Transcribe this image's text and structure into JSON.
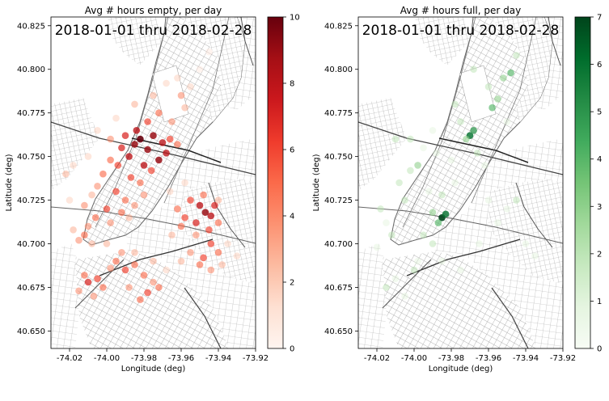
{
  "chart_data": [
    {
      "type": "scatter",
      "title": "Avg # hours empty, per day",
      "overlay": "2018-01-01 thru 2018-02-28",
      "xlabel": "Longitude (deg)",
      "ylabel": "Latitude (deg)",
      "xlim": [
        -74.03,
        -73.92
      ],
      "ylim": [
        40.64,
        40.83
      ],
      "xticks": [
        "-74.02",
        "-74.00",
        "-73.98",
        "-73.96",
        "-73.94",
        "-73.92"
      ],
      "yticks": [
        "40.650",
        "40.675",
        "40.700",
        "40.725",
        "40.750",
        "40.775",
        "40.800",
        "40.825"
      ],
      "colorbar": {
        "cmap": "Reds",
        "range": [
          0,
          10
        ],
        "ticks": [
          "0",
          "2",
          "4",
          "6",
          "8",
          "10"
        ]
      },
      "points": [
        [
          -73.985,
          40.757,
          9
        ],
        [
          -73.982,
          40.76,
          10
        ],
        [
          -73.978,
          40.754,
          9
        ],
        [
          -73.975,
          40.762,
          9
        ],
        [
          -73.97,
          40.758,
          8
        ],
        [
          -73.968,
          40.752,
          8
        ],
        [
          -73.972,
          40.748,
          9
        ],
        [
          -73.988,
          40.75,
          8
        ],
        [
          -73.992,
          40.755,
          7
        ],
        [
          -73.98,
          40.745,
          8
        ],
        [
          -73.976,
          40.742,
          6
        ],
        [
          -73.99,
          40.762,
          7
        ],
        [
          -73.984,
          40.765,
          8
        ],
        [
          -73.966,
          40.76,
          6
        ],
        [
          -73.962,
          40.757,
          5
        ],
        [
          -73.994,
          40.745,
          6
        ],
        [
          -73.998,
          40.748,
          5
        ],
        [
          -73.987,
          40.738,
          6
        ],
        [
          -73.982,
          40.735,
          5
        ],
        [
          -73.978,
          40.77,
          6
        ],
        [
          -73.972,
          40.775,
          5
        ],
        [
          -73.965,
          40.77,
          4
        ],
        [
          -73.958,
          40.778,
          3
        ],
        [
          -73.96,
          40.785,
          4
        ],
        [
          -73.975,
          40.785,
          3
        ],
        [
          -73.968,
          40.792,
          2
        ],
        [
          -73.962,
          40.795,
          2
        ],
        [
          -73.955,
          40.79,
          2
        ],
        [
          -73.985,
          40.78,
          3
        ],
        [
          -73.998,
          40.76,
          4
        ],
        [
          -74.002,
          40.74,
          5
        ],
        [
          -74.005,
          40.733,
          4
        ],
        [
          -73.995,
          40.73,
          6
        ],
        [
          -73.99,
          40.725,
          5
        ],
        [
          -73.985,
          40.722,
          4
        ],
        [
          -73.992,
          40.718,
          5
        ],
        [
          -74.0,
          40.72,
          6
        ],
        [
          -74.006,
          40.715,
          5
        ],
        [
          -74.01,
          40.71,
          4
        ],
        [
          -74.012,
          40.705,
          5
        ],
        [
          -74.015,
          40.702,
          4
        ],
        [
          -74.008,
          40.7,
          3
        ],
        [
          -74.018,
          40.708,
          3
        ],
        [
          -73.998,
          40.712,
          4
        ],
        [
          -73.988,
          40.715,
          3
        ],
        [
          -73.98,
          40.728,
          4
        ],
        [
          -74.008,
          40.728,
          3
        ],
        [
          -74.012,
          40.722,
          4
        ],
        [
          -73.95,
          40.722,
          8
        ],
        [
          -73.947,
          40.718,
          9
        ],
        [
          -73.944,
          40.716,
          8
        ],
        [
          -73.952,
          40.712,
          7
        ],
        [
          -73.958,
          40.715,
          6
        ],
        [
          -73.955,
          40.725,
          6
        ],
        [
          -73.948,
          40.728,
          5
        ],
        [
          -73.942,
          40.722,
          7
        ],
        [
          -73.962,
          40.72,
          5
        ],
        [
          -73.96,
          40.71,
          5
        ],
        [
          -73.952,
          40.705,
          4
        ],
        [
          -73.945,
          40.708,
          6
        ],
        [
          -73.94,
          40.712,
          5
        ],
        [
          -73.944,
          40.7,
          6
        ],
        [
          -73.94,
          40.695,
          5
        ],
        [
          -73.948,
          40.692,
          6
        ],
        [
          -73.955,
          40.695,
          4
        ],
        [
          -73.95,
          40.688,
          5
        ],
        [
          -73.944,
          40.685,
          4
        ],
        [
          -73.938,
          40.688,
          3
        ],
        [
          -73.965,
          40.705,
          3
        ],
        [
          -73.966,
          40.73,
          2
        ],
        [
          -73.958,
          40.735,
          2
        ],
        [
          -73.94,
          40.725,
          3
        ],
        [
          -73.995,
          40.69,
          5
        ],
        [
          -73.99,
          40.685,
          6
        ],
        [
          -73.985,
          40.688,
          5
        ],
        [
          -73.992,
          40.695,
          4
        ],
        [
          -73.998,
          40.686,
          4
        ],
        [
          -73.98,
          40.682,
          5
        ],
        [
          -73.975,
          40.678,
          4
        ],
        [
          -73.972,
          40.675,
          5
        ],
        [
          -73.978,
          40.672,
          6
        ],
        [
          -73.982,
          40.668,
          5
        ],
        [
          -74.005,
          40.68,
          6
        ],
        [
          -74.01,
          40.678,
          7
        ],
        [
          -74.012,
          40.682,
          5
        ],
        [
          -74.002,
          40.675,
          5
        ],
        [
          -73.988,
          40.675,
          4
        ],
        [
          -73.985,
          40.695,
          3
        ],
        [
          -73.975,
          40.69,
          3
        ],
        [
          -73.968,
          40.685,
          2
        ],
        [
          -74.015,
          40.673,
          4
        ],
        [
          -74.007,
          40.67,
          4
        ],
        [
          -73.935,
          40.7,
          2
        ],
        [
          -73.93,
          40.693,
          2
        ],
        [
          -73.96,
          40.69,
          3
        ],
        [
          -74.02,
          40.725,
          2
        ],
        [
          -74.022,
          40.74,
          3
        ],
        [
          -74.018,
          40.745,
          2
        ],
        [
          -74.01,
          40.75,
          2
        ],
        [
          -74.005,
          40.765,
          2
        ],
        [
          -73.995,
          40.772,
          2
        ],
        [
          -73.95,
          40.8,
          1
        ],
        [
          -73.945,
          40.81,
          1
        ],
        [
          -74.0,
          40.7,
          3
        ]
      ]
    },
    {
      "type": "scatter",
      "title": "Avg # hours full, per day",
      "overlay": "2018-01-01 thru 2018-02-28",
      "xlabel": "Longitude (deg)",
      "ylabel": "Latitude (deg)",
      "xlim": [
        -74.03,
        -73.92
      ],
      "ylim": [
        40.64,
        40.83
      ],
      "xticks": [
        "-74.02",
        "-74.00",
        "-73.98",
        "-73.96",
        "-73.94",
        "-73.92"
      ],
      "yticks": [
        "40.650",
        "40.675",
        "40.700",
        "40.725",
        "40.750",
        "40.775",
        "40.800",
        "40.825"
      ],
      "colorbar": {
        "cmap": "Greens",
        "range": [
          0,
          7
        ],
        "ticks": [
          "0",
          "1",
          "2",
          "3",
          "4",
          "5",
          "6",
          "7"
        ]
      },
      "points": [
        [
          -73.985,
          40.715,
          7
        ],
        [
          -73.983,
          40.717,
          6
        ],
        [
          -73.987,
          40.712,
          4
        ],
        [
          -73.99,
          40.718,
          3
        ],
        [
          -73.97,
          40.762,
          6
        ],
        [
          -73.968,
          40.765,
          5
        ],
        [
          -73.972,
          40.76,
          3
        ],
        [
          -73.958,
          40.778,
          4
        ],
        [
          -73.955,
          40.783,
          3
        ],
        [
          -73.952,
          40.795,
          3
        ],
        [
          -73.948,
          40.798,
          4
        ],
        [
          -73.96,
          40.79,
          2
        ],
        [
          -73.968,
          40.8,
          2
        ],
        [
          -73.975,
          40.77,
          2
        ],
        [
          -73.978,
          40.78,
          2
        ],
        [
          -73.998,
          40.745,
          3
        ],
        [
          -74.002,
          40.742,
          2
        ],
        [
          -74.008,
          40.735,
          2
        ],
        [
          -74.005,
          40.725,
          2
        ],
        [
          -74.01,
          40.76,
          2
        ],
        [
          -74.002,
          40.76,
          2
        ],
        [
          -73.995,
          40.755,
          1
        ],
        [
          -73.988,
          40.752,
          1
        ],
        [
          -73.98,
          40.748,
          1
        ],
        [
          -73.992,
          40.73,
          1
        ],
        [
          -73.985,
          40.728,
          2
        ],
        [
          -73.978,
          40.735,
          1
        ],
        [
          -74.012,
          40.705,
          2
        ],
        [
          -74.015,
          40.712,
          1
        ],
        [
          -74.018,
          40.72,
          2
        ],
        [
          -74.02,
          40.698,
          1
        ],
        [
          -73.995,
          40.705,
          2
        ],
        [
          -73.99,
          40.7,
          2
        ],
        [
          -73.998,
          40.69,
          1
        ],
        [
          -74.0,
          40.685,
          2
        ],
        [
          -74.01,
          40.68,
          1
        ],
        [
          -74.015,
          40.675,
          2
        ],
        [
          -74.005,
          40.67,
          1
        ],
        [
          -73.985,
          40.69,
          1
        ],
        [
          -73.975,
          40.685,
          1
        ],
        [
          -73.965,
          40.7,
          1
        ],
        [
          -73.955,
          40.712,
          1
        ],
        [
          -73.95,
          40.72,
          1
        ],
        [
          -73.945,
          40.725,
          2
        ],
        [
          -73.96,
          40.725,
          1
        ],
        [
          -73.94,
          40.7,
          1
        ],
        [
          -73.935,
          40.693,
          1
        ],
        [
          -73.962,
          40.745,
          1
        ],
        [
          -73.966,
          40.752,
          2
        ],
        [
          -73.945,
          40.808,
          2
        ],
        [
          -73.95,
          40.77,
          1
        ],
        [
          -73.99,
          40.765,
          1
        ]
      ]
    }
  ]
}
